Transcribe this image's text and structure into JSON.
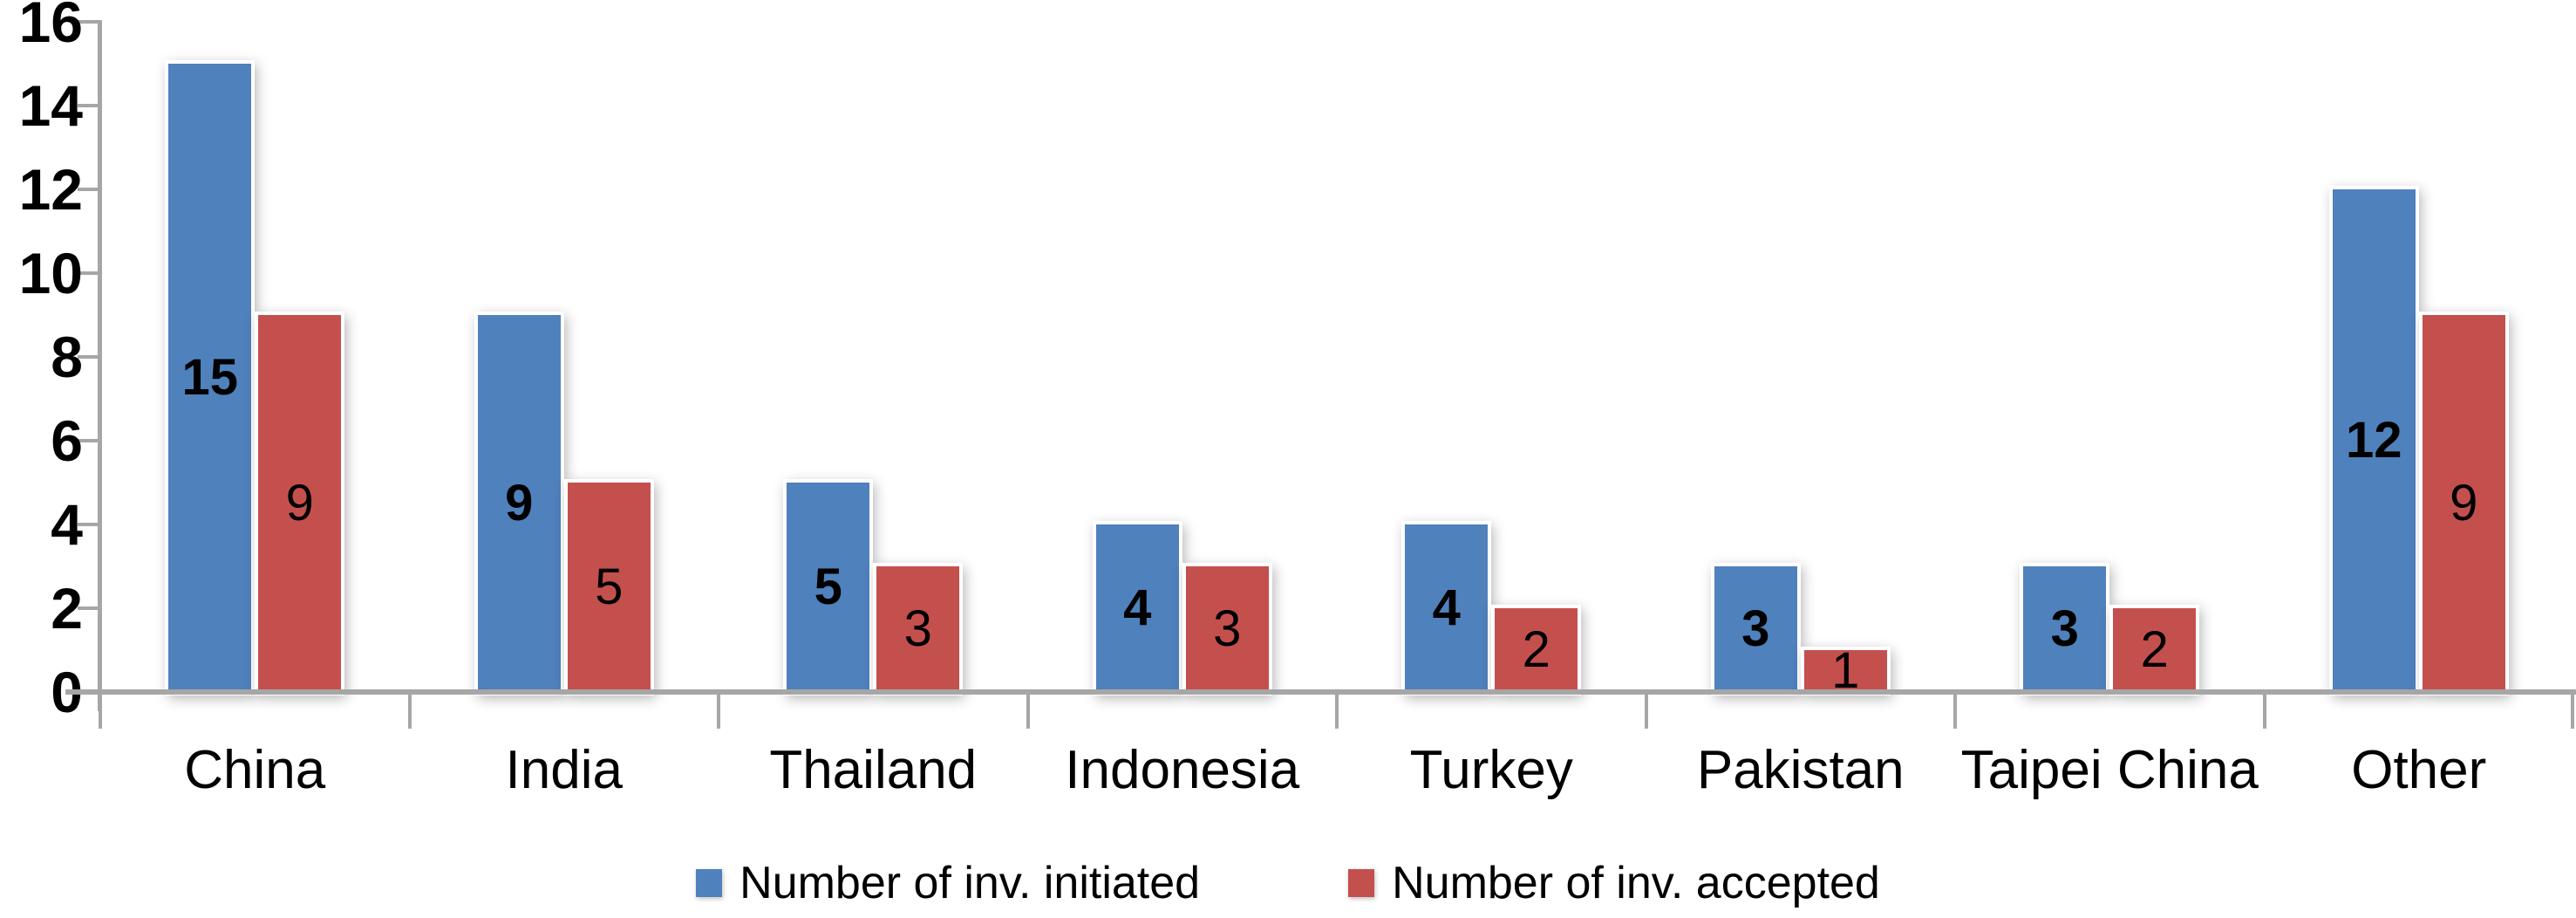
{
  "chart_data": {
    "type": "bar",
    "title": "",
    "xlabel": "",
    "ylabel": "",
    "categories": [
      "China",
      "India",
      "Thailand",
      "Indonesia",
      "Turkey",
      "Pakistan",
      "Taipei China",
      "Other"
    ],
    "series": [
      {
        "name": "Number of inv. initiated",
        "color": "#4F81BD",
        "values": [
          15,
          9,
          5,
          4,
          4,
          3,
          3,
          12
        ],
        "data_labels_bold": true
      },
      {
        "name": "Number of inv. accepted",
        "color": "#C4504D",
        "values": [
          9,
          5,
          3,
          3,
          2,
          1,
          2,
          9
        ],
        "data_labels_bold": false
      }
    ],
    "ylim": [
      0,
      16
    ],
    "y_ticks": [
      "0",
      "2",
      "4",
      "6",
      "8",
      "10",
      "12",
      "14",
      "16"
    ],
    "grid": false,
    "data_label_position": "inside-center",
    "legend_position": "bottom-center",
    "axis_color": "#A6A6A6",
    "label_color": "#000000"
  }
}
